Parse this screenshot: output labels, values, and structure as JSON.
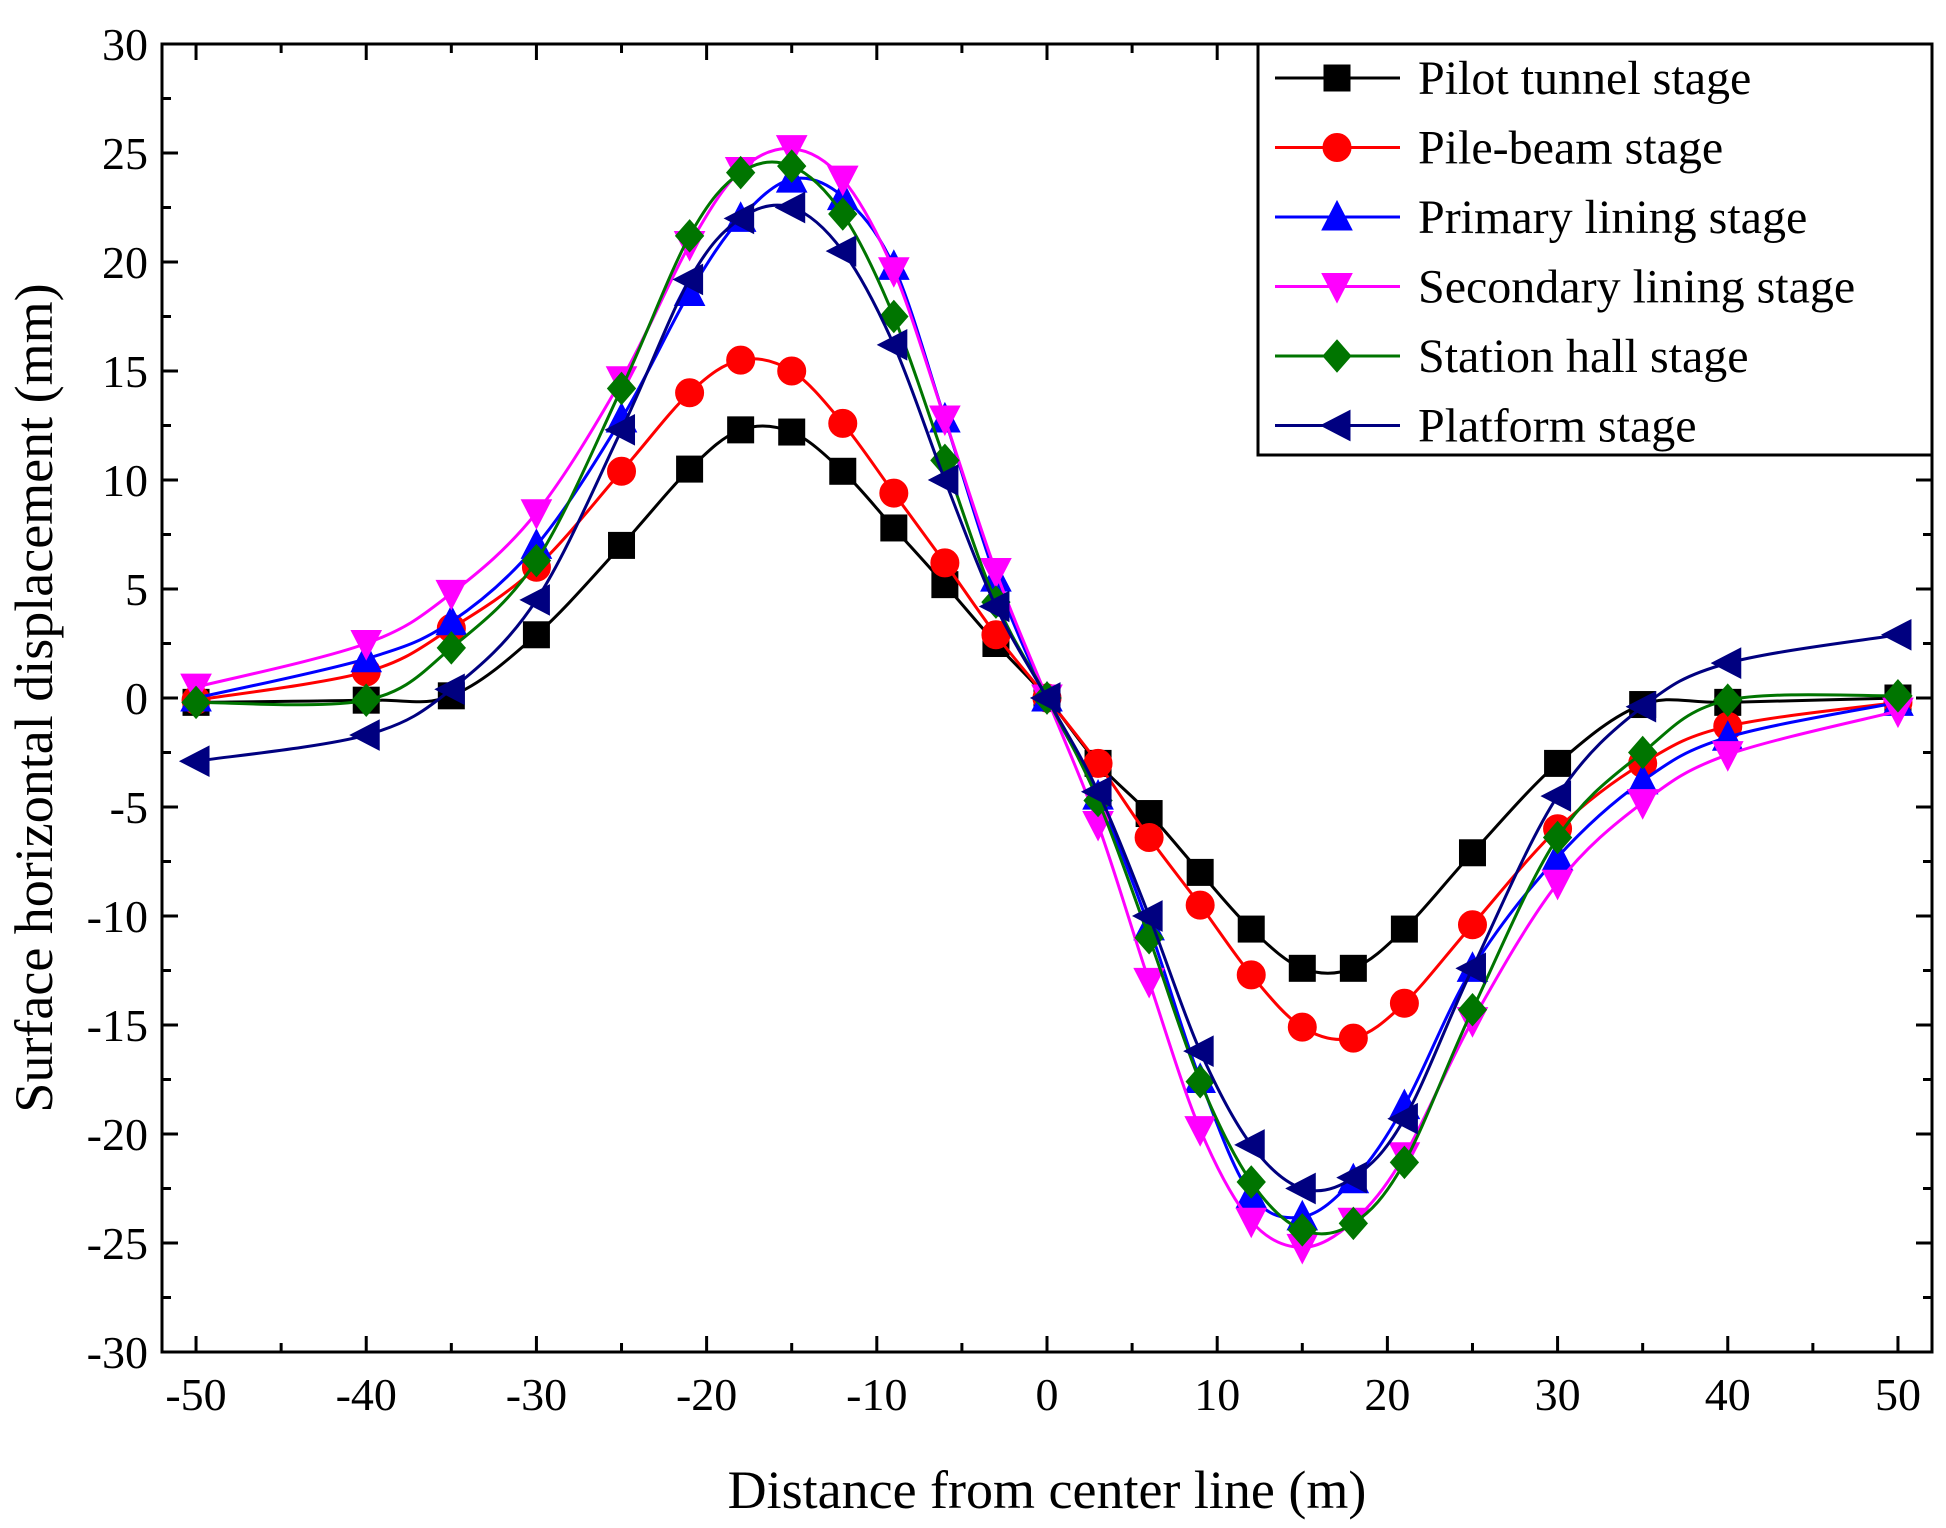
{
  "chart_data": {
    "type": "line",
    "title": "",
    "xlabel": "Distance from center line (m)",
    "ylabel": "Surface horizontal displacement (mm)",
    "xlim": [
      -52,
      52
    ],
    "ylim": [
      -30,
      30
    ],
    "xticks": [
      -50,
      -40,
      -30,
      -20,
      -10,
      0,
      10,
      20,
      30,
      40,
      50
    ],
    "yticks": [
      30,
      25,
      20,
      15,
      10,
      5,
      0,
      -5,
      -10,
      -15,
      -20,
      -25,
      -30
    ],
    "legend_position": "top-right",
    "x": [
      -50,
      -40,
      -35,
      -30,
      -25,
      -21,
      -18,
      -15,
      -12,
      -9,
      -6,
      -3,
      0,
      3,
      6,
      9,
      12,
      15,
      18,
      21,
      25,
      30,
      35,
      40,
      50
    ],
    "series": [
      {
        "name": "Pilot tunnel stage",
        "color": "#000000",
        "marker": "square",
        "values": [
          -0.2,
          -0.1,
          0.1,
          2.9,
          7.0,
          10.5,
          12.3,
          12.2,
          10.4,
          7.8,
          5.2,
          2.5,
          0,
          -3.0,
          -5.3,
          -8.0,
          -10.6,
          -12.4,
          -12.4,
          -10.6,
          -7.1,
          -3.0,
          -0.3,
          -0.2,
          0
        ]
      },
      {
        "name": "Pile-beam stage",
        "color": "#ff0000",
        "marker": "circle",
        "values": [
          -0.1,
          1.2,
          3.2,
          6.0,
          10.4,
          14.0,
          15.5,
          15.0,
          12.6,
          9.4,
          6.2,
          2.9,
          0,
          -3.0,
          -6.4,
          -9.5,
          -12.7,
          -15.1,
          -15.6,
          -14.0,
          -10.4,
          -6.0,
          -3.0,
          -1.3,
          -0.2
        ]
      },
      {
        "name": "Primary lining stage",
        "color": "#0000ff",
        "marker": "triangle-up",
        "values": [
          0,
          1.8,
          3.5,
          7.0,
          12.8,
          18.6,
          22.0,
          23.8,
          23.0,
          19.8,
          12.8,
          5.5,
          0,
          -4.5,
          -10.5,
          -17.5,
          -22.8,
          -23.8,
          -22.1,
          -18.7,
          -12.4,
          -7.3,
          -3.8,
          -1.8,
          -0.2
        ]
      },
      {
        "name": "Secondary lining stage",
        "color": "#ff00ff",
        "marker": "triangle-down",
        "values": [
          0.5,
          2.5,
          4.8,
          8.5,
          14.6,
          20.8,
          24.2,
          25.2,
          23.8,
          19.6,
          12.8,
          5.8,
          0,
          -5.8,
          -13.0,
          -19.8,
          -24.0,
          -25.2,
          -24.0,
          -21.0,
          -14.8,
          -8.5,
          -4.8,
          -2.6,
          -0.6
        ]
      },
      {
        "name": "Station hall stage",
        "color": "#007500",
        "marker": "diamond",
        "values": [
          -0.2,
          -0.1,
          2.3,
          6.3,
          14.2,
          21.2,
          24.1,
          24.4,
          22.2,
          17.5,
          10.9,
          4.4,
          0,
          -4.7,
          -11.0,
          -17.6,
          -22.2,
          -24.4,
          -24.1,
          -21.3,
          -14.3,
          -6.4,
          -2.5,
          -0.1,
          0.1
        ]
      },
      {
        "name": "Platform stage",
        "color": "#000080",
        "marker": "triangle-left",
        "values": [
          -2.9,
          -1.7,
          0.4,
          4.5,
          12.3,
          19.2,
          22.0,
          22.5,
          20.5,
          16.2,
          10.0,
          4.2,
          0,
          -4.3,
          -10.0,
          -16.2,
          -20.5,
          -22.5,
          -22.0,
          -19.3,
          -12.4,
          -4.5,
          -0.4,
          1.6,
          2.9
        ]
      }
    ]
  }
}
